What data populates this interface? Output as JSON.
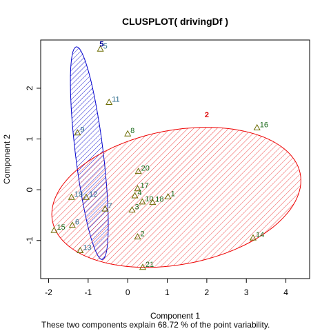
{
  "chart_data": {
    "type": "scatter",
    "title": "CLUSPLOT( drivingDf )",
    "xlabel": "Component 1",
    "ylabel": "Component 2",
    "caption": "These two components explain 68.72 % of the point variability.",
    "xlim": [
      -2.2,
      4.6
    ],
    "ylim": [
      -1.75,
      2.95
    ],
    "xticks": [
      -2,
      -1,
      0,
      1,
      2,
      3,
      4
    ],
    "yticks": [
      -1,
      0,
      1,
      2
    ],
    "colors": {
      "cluster1": "#0000cc",
      "cluster2": "#ee0000",
      "point_marker": "#6b6b00",
      "label_cluster1": "#2a6a8a",
      "label_cluster2": "#1a6a1a"
    },
    "clusters": [
      {
        "id": "5",
        "label_point": {
          "x": -0.66,
          "y": 2.82
        },
        "ellipse": {
          "cx": -0.97,
          "cy": 0.72,
          "rx": 2.12,
          "ry": 0.35,
          "angle_deg": -81
        },
        "points": [
          {
            "label": "5",
            "x": -0.69,
            "y": 2.77
          },
          {
            "label": "11",
            "x": -0.47,
            "y": 1.72
          },
          {
            "label": "9",
            "x": -1.27,
            "y": 1.12
          },
          {
            "label": "19",
            "x": -1.42,
            "y": -0.15
          },
          {
            "label": "12",
            "x": -1.05,
            "y": -0.15
          },
          {
            "label": "7",
            "x": -0.57,
            "y": -0.38
          },
          {
            "label": "6",
            "x": -1.4,
            "y": -0.7
          },
          {
            "label": "13",
            "x": -1.2,
            "y": -1.2
          }
        ]
      },
      {
        "id": "2",
        "label_point": {
          "x": 2.0,
          "y": 1.43
        },
        "ellipse": {
          "cx": 1.23,
          "cy": -0.15,
          "rx": 3.17,
          "ry": 1.33,
          "angle_deg": 7.3
        },
        "points": [
          {
            "label": "8",
            "x": 0.0,
            "y": 1.1
          },
          {
            "label": "16",
            "x": 3.27,
            "y": 1.22
          },
          {
            "label": "20",
            "x": 0.27,
            "y": 0.36
          },
          {
            "label": "17",
            "x": 0.25,
            "y": 0.02
          },
          {
            "label": "4",
            "x": 0.18,
            "y": -0.12
          },
          {
            "label": "1",
            "x": 1.02,
            "y": -0.14
          },
          {
            "label": "10",
            "x": 0.37,
            "y": -0.24
          },
          {
            "label": "18",
            "x": 0.63,
            "y": -0.25
          },
          {
            "label": "3",
            "x": 0.11,
            "y": -0.4
          },
          {
            "label": "15",
            "x": -1.86,
            "y": -0.8
          },
          {
            "label": "2",
            "x": 0.25,
            "y": -0.93
          },
          {
            "label": "14",
            "x": 3.17,
            "y": -0.95
          },
          {
            "label": "21",
            "x": 0.38,
            "y": -1.53
          }
        ]
      }
    ]
  }
}
